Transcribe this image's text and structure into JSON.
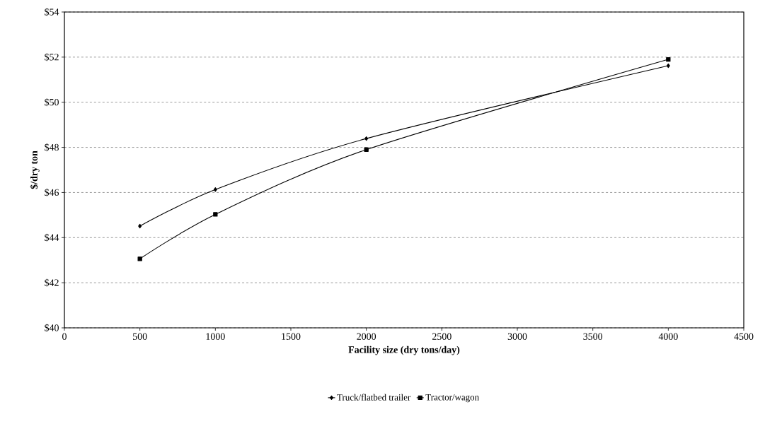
{
  "chart_data": {
    "type": "line",
    "xlabel": "Facility size (dry tons/day)",
    "ylabel": "$/dry ton",
    "x": [
      500,
      1000,
      2000,
      4000
    ],
    "series": [
      {
        "name": "Truck/flatbed trailer",
        "color": "#000000",
        "marker": "diamond",
        "values": [
          44.51,
          46.13,
          48.39,
          51.62
        ]
      },
      {
        "name": "Tractor/wagon",
        "color": "#000000",
        "marker": "square",
        "values": [
          43.06,
          45.03,
          47.9,
          51.9
        ]
      }
    ],
    "xlim": [
      0,
      4500
    ],
    "xticks": [
      0,
      500,
      1000,
      1500,
      2000,
      2500,
      3000,
      3500,
      4000,
      4500
    ],
    "ylim": [
      40,
      54
    ],
    "yticks": [
      {
        "value": 40,
        "label": "$40"
      },
      {
        "value": 42,
        "label": "$42"
      },
      {
        "value": 44,
        "label": "$44"
      },
      {
        "value": 46,
        "label": "$46"
      },
      {
        "value": 48,
        "label": "$48"
      },
      {
        "value": 50,
        "label": "$50"
      },
      {
        "value": 52,
        "label": "$52"
      },
      {
        "value": 54,
        "label": "$54"
      }
    ],
    "grid": "y",
    "legend": "bottom",
    "line_style": "solid"
  }
}
